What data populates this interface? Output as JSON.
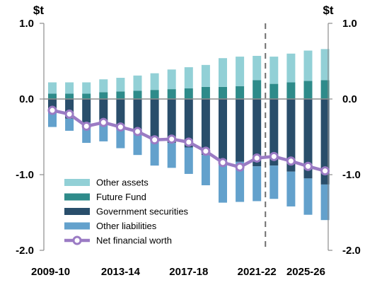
{
  "chart_data": {
    "type": "bar",
    "y_unit_label": "$t",
    "ylim": [
      -2.0,
      1.0
    ],
    "ytick_labels": [
      "1.0",
      "0.0",
      "-1.0",
      "-2.0"
    ],
    "ytick_values": [
      1.0,
      0.0,
      -1.0,
      -2.0
    ],
    "categories": [
      "2009-10",
      "2010-11",
      "2011-12",
      "2012-13",
      "2013-14",
      "2014-15",
      "2015-16",
      "2016-17",
      "2017-18",
      "2018-19",
      "2019-20",
      "2020-21",
      "2021-22",
      "2022-23",
      "2023-24",
      "2024-25",
      "2025-26"
    ],
    "xtick_labels": [
      "2009-10",
      "2013-14",
      "2017-18",
      "2021-22",
      "2025-26"
    ],
    "projection_divider_after": "2021-22",
    "grid": false,
    "legend_position": "bottom-left",
    "series": [
      {
        "name": "Other assets",
        "kind": "bar",
        "color": "#92D0D6",
        "values": [
          0.15,
          0.15,
          0.15,
          0.17,
          0.18,
          0.2,
          0.22,
          0.26,
          0.28,
          0.29,
          0.38,
          0.39,
          0.32,
          0.36,
          0.38,
          0.4,
          0.41
        ]
      },
      {
        "name": "Future Fund",
        "kind": "bar",
        "color": "#2E8B8A",
        "values": [
          0.07,
          0.07,
          0.07,
          0.09,
          0.1,
          0.11,
          0.12,
          0.13,
          0.14,
          0.16,
          0.16,
          0.17,
          0.25,
          0.2,
          0.22,
          0.24,
          0.25
        ]
      },
      {
        "name": "Government securities",
        "kind": "bar",
        "color": "#294E6B",
        "values": [
          -0.17,
          -0.26,
          -0.31,
          -0.34,
          -0.4,
          -0.46,
          -0.52,
          -0.58,
          -0.64,
          -0.74,
          -0.82,
          -0.83,
          -0.89,
          -0.88,
          -0.96,
          -1.05,
          -1.13
        ]
      },
      {
        "name": "Other liabilities",
        "kind": "bar",
        "color": "#63A1CC",
        "values": [
          -0.2,
          -0.16,
          -0.27,
          -0.22,
          -0.25,
          -0.28,
          -0.36,
          -0.33,
          -0.35,
          -0.4,
          -0.55,
          -0.53,
          -0.46,
          -0.44,
          -0.46,
          -0.48,
          -0.47
        ]
      },
      {
        "name": "Net financial worth",
        "kind": "line",
        "color": "#9B7BC4",
        "values": [
          -0.15,
          -0.2,
          -0.36,
          -0.31,
          -0.37,
          -0.43,
          -0.54,
          -0.53,
          -0.57,
          -0.69,
          -0.84,
          -0.9,
          -0.78,
          -0.76,
          -0.82,
          -0.89,
          -0.95
        ]
      }
    ]
  }
}
